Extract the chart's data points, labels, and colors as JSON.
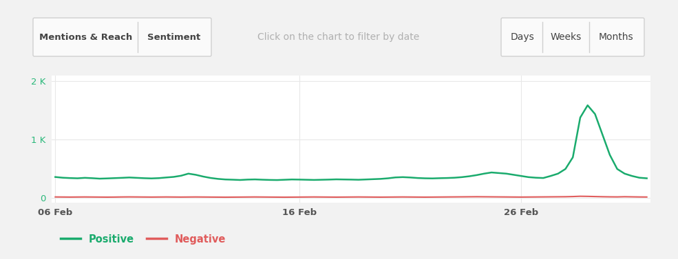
{
  "background_color": "#f2f2f2",
  "chart_bg": "#ffffff",
  "title_bar_text1": "Mentions & Reach",
  "title_bar_text2": "Sentiment",
  "center_text": "Click on the chart to filter by date",
  "right_buttons": [
    "Days",
    "Weeks",
    "Months"
  ],
  "x_tick_labels": [
    "06 Feb",
    "16 Feb",
    "26 Feb"
  ],
  "y_tick_labels": [
    "0",
    "1 K",
    "2 K"
  ],
  "ytick_color": "#2ab87a",
  "xtick_color": "#555555",
  "y_max": 2100,
  "y_min": -80,
  "legend_positive": "Positive",
  "legend_negative": "Negative",
  "positive_color": "#1aab6d",
  "negative_color": "#e05c5c",
  "grid_color": "#e8e8e8",
  "positive_x": [
    0,
    1,
    2,
    3,
    4,
    5,
    6,
    7,
    8,
    9,
    10,
    11,
    12,
    13,
    14,
    15,
    16,
    17,
    18,
    19,
    20,
    21,
    22,
    23,
    24,
    25,
    26,
    27,
    28,
    29,
    30,
    31,
    32,
    33,
    34,
    35,
    36,
    37,
    38,
    39,
    40,
    41,
    42,
    43,
    44,
    45,
    46,
    47,
    48,
    49,
    50,
    51,
    52,
    53,
    54,
    55,
    56,
    57,
    58,
    59,
    60,
    61,
    62,
    63,
    64,
    65,
    66,
    67,
    68,
    69,
    70,
    71,
    72,
    73,
    74,
    75,
    76,
    77,
    78,
    79,
    80
  ],
  "positive_y": [
    360,
    348,
    342,
    338,
    346,
    340,
    332,
    336,
    341,
    346,
    352,
    346,
    340,
    336,
    341,
    352,
    362,
    382,
    418,
    398,
    368,
    344,
    328,
    318,
    314,
    309,
    316,
    319,
    314,
    310,
    308,
    313,
    318,
    316,
    313,
    310,
    313,
    316,
    320,
    318,
    316,
    313,
    318,
    323,
    328,
    338,
    353,
    358,
    352,
    343,
    338,
    336,
    340,
    343,
    348,
    358,
    373,
    393,
    418,
    438,
    428,
    418,
    398,
    378,
    358,
    348,
    343,
    378,
    418,
    498,
    698,
    1380,
    1590,
    1440,
    1090,
    740,
    498,
    418,
    378,
    348,
    338
  ],
  "negative_x": [
    0,
    1,
    2,
    3,
    4,
    5,
    6,
    7,
    8,
    9,
    10,
    11,
    12,
    13,
    14,
    15,
    16,
    17,
    18,
    19,
    20,
    21,
    22,
    23,
    24,
    25,
    26,
    27,
    28,
    29,
    30,
    31,
    32,
    33,
    34,
    35,
    36,
    37,
    38,
    39,
    40,
    41,
    42,
    43,
    44,
    45,
    46,
    47,
    48,
    49,
    50,
    51,
    52,
    53,
    54,
    55,
    56,
    57,
    58,
    59,
    60,
    61,
    62,
    63,
    64,
    65,
    66,
    67,
    68,
    69,
    70,
    71,
    72,
    73,
    74,
    75,
    76,
    77,
    78,
    79,
    80
  ],
  "negative_y": [
    18,
    17,
    16,
    17,
    18,
    17,
    16,
    15,
    16,
    18,
    19,
    18,
    17,
    16,
    17,
    18,
    17,
    16,
    17,
    18,
    17,
    16,
    15,
    14,
    15,
    16,
    17,
    18,
    17,
    16,
    15,
    14,
    15,
    16,
    17,
    18,
    17,
    16,
    15,
    16,
    17,
    18,
    17,
    16,
    15,
    16,
    17,
    18,
    17,
    16,
    15,
    16,
    17,
    18,
    19,
    20,
    21,
    22,
    21,
    20,
    19,
    18,
    17,
    16,
    17,
    18,
    19,
    20,
    21,
    22,
    25,
    30,
    28,
    25,
    22,
    20,
    19,
    22,
    20,
    18,
    17
  ]
}
